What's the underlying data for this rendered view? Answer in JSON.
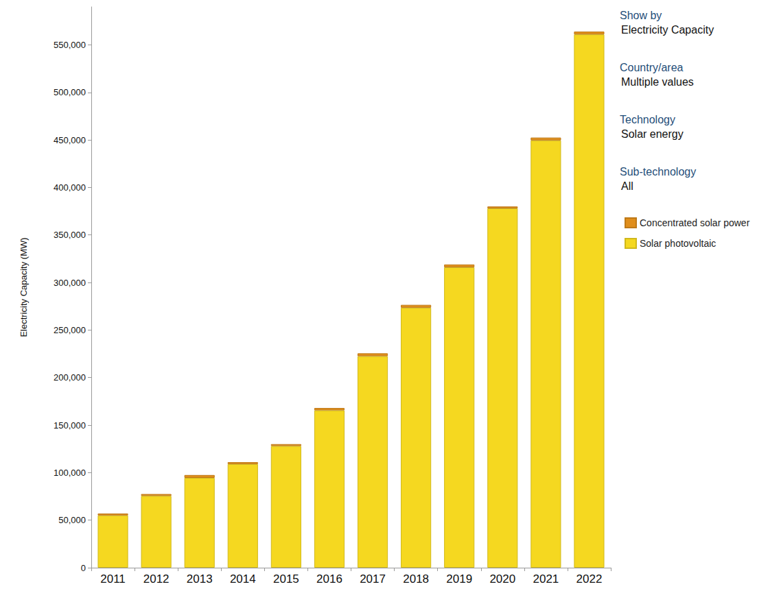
{
  "chart_data": {
    "type": "bar",
    "stacked": true,
    "y_label": "Electricity Capacity (MW)",
    "categories": [
      "2011",
      "2012",
      "2013",
      "2014",
      "2015",
      "2016",
      "2017",
      "2018",
      "2019",
      "2020",
      "2021",
      "2022"
    ],
    "series": [
      {
        "name": "Solar photovoltaic",
        "color": "#f5d820",
        "values": [
          55000,
          75500,
          94500,
          109000,
          128000,
          165500,
          222500,
          273500,
          316000,
          378000,
          449500,
          561000
        ]
      },
      {
        "name": "Concentrated solar power",
        "color": "#e08e1b",
        "values": [
          2000,
          2000,
          3000,
          2000,
          2000,
          2500,
          3000,
          3000,
          3000,
          2000,
          3000,
          3000
        ]
      }
    ],
    "ylim": [
      0,
      590000
    ],
    "yticks": [
      0,
      {
        "value": 50000,
        "label": "50,000"
      },
      {
        "value": 100000,
        "label": "100,000"
      },
      {
        "value": 150000,
        "label": "150,000"
      },
      {
        "value": 200000,
        "label": "200,000"
      },
      {
        "value": 250000,
        "label": "250,000"
      },
      {
        "value": 300000,
        "label": "300,000"
      },
      {
        "value": 350000,
        "label": "350,000"
      },
      {
        "value": 400000,
        "label": "400,000"
      },
      {
        "value": 450000,
        "label": "450,000"
      },
      {
        "value": 500000,
        "label": "500,000"
      },
      {
        "value": 550000,
        "label": "550,000"
      }
    ],
    "grid": false,
    "legend": "right",
    "annotations": [
      {
        "heading": "Show by",
        "text": "Electricity Capacity"
      },
      {
        "heading": "Country/area",
        "text": "Multiple values"
      },
      {
        "heading": "Technology",
        "text": "Solar energy"
      },
      {
        "heading": "Sub-technology",
        "text": "All"
      }
    ]
  }
}
